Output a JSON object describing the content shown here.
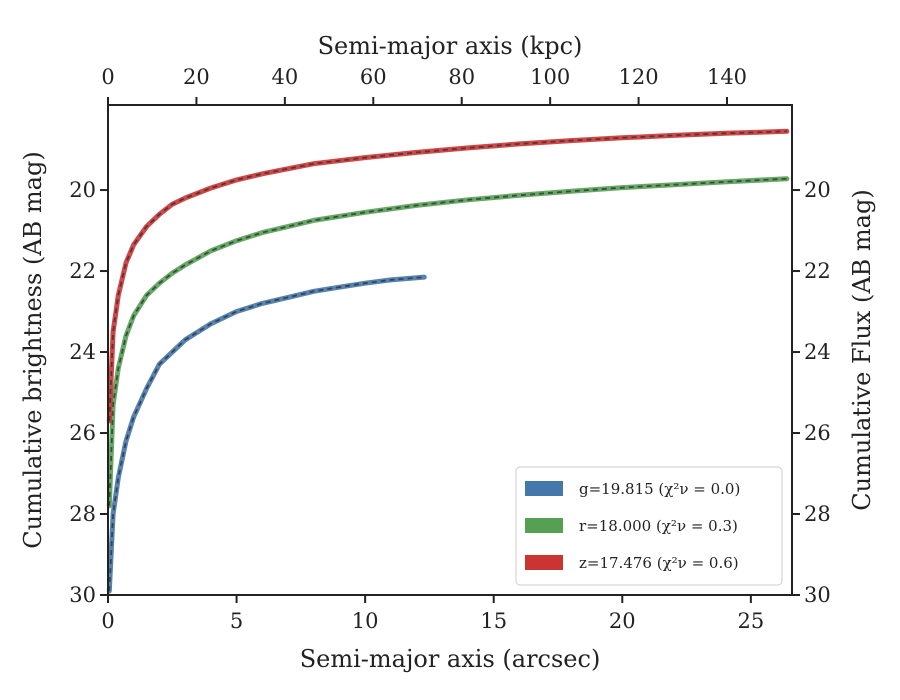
{
  "chart_data": {
    "type": "line",
    "xlabel": "Semi-major axis (arcsec)",
    "x2label": "Semi-major axis (kpc)",
    "ylabel": "Cumulative brightness (AB mag)",
    "y2label": "Cumulative Flux (AB mag)",
    "xlim": [
      0,
      26.6
    ],
    "x2lim": [
      0,
      154.7
    ],
    "ylim": [
      30,
      17.9
    ],
    "y_inverted": true,
    "xticks": [
      0,
      5,
      10,
      15,
      20,
      25
    ],
    "x2ticks": [
      0,
      20,
      40,
      60,
      80,
      100,
      120,
      140
    ],
    "yticks": [
      20,
      22,
      24,
      26,
      28,
      30
    ],
    "grid": false,
    "legend_position": "lower-right",
    "series": [
      {
        "name": "g=19.815 (χ²ν = 0.0)",
        "color": "#4477aa",
        "x": [
          0.05,
          0.2,
          0.4,
          0.7,
          1.0,
          1.5,
          2.0,
          2.5,
          3.0,
          4.0,
          5.0,
          6.0,
          7.0,
          8.0,
          9.0,
          10.0,
          11.0,
          12.3
        ],
        "y": [
          29.9,
          28.0,
          27.1,
          26.2,
          25.6,
          24.9,
          24.3,
          24.0,
          23.7,
          23.3,
          23.0,
          22.8,
          22.65,
          22.5,
          22.4,
          22.3,
          22.22,
          22.15
        ]
      },
      {
        "name": "r=18.000 (χ²ν = 0.3)",
        "color": "#55a055",
        "x": [
          0.05,
          0.2,
          0.4,
          0.7,
          1.0,
          1.5,
          2.0,
          2.5,
          3.0,
          4.0,
          5.0,
          6.0,
          8.0,
          10.0,
          12.0,
          14.0,
          16.0,
          18.0,
          20.0,
          22.0,
          24.0,
          26.4
        ],
        "y": [
          27.8,
          25.3,
          24.4,
          23.6,
          23.1,
          22.6,
          22.3,
          22.05,
          21.85,
          21.5,
          21.25,
          21.05,
          20.75,
          20.55,
          20.38,
          20.24,
          20.13,
          20.03,
          19.94,
          19.87,
          19.8,
          19.72
        ]
      },
      {
        "name": "z=17.476 (χ²ν = 0.6)",
        "color": "#cc3333",
        "x": [
          0.05,
          0.2,
          0.4,
          0.7,
          1.0,
          1.5,
          2.0,
          2.5,
          3.0,
          4.0,
          5.0,
          6.0,
          8.0,
          10.0,
          12.0,
          14.0,
          16.0,
          18.0,
          20.0,
          22.0,
          24.0,
          26.4
        ],
        "y": [
          25.7,
          23.5,
          22.6,
          21.8,
          21.35,
          20.9,
          20.6,
          20.35,
          20.2,
          19.95,
          19.75,
          19.6,
          19.35,
          19.2,
          19.07,
          18.96,
          18.86,
          18.78,
          18.71,
          18.65,
          18.6,
          18.55
        ]
      }
    ]
  }
}
